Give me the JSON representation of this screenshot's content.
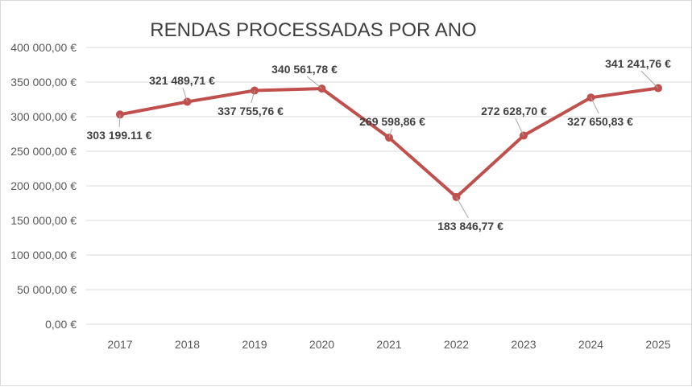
{
  "chart_data": {
    "type": "line",
    "title": "RENDAS PROCESSADAS POR ANO",
    "xlabel": "",
    "ylabel": "",
    "categories": [
      "2017",
      "2018",
      "2019",
      "2020",
      "2021",
      "2022",
      "2023",
      "2024",
      "2025"
    ],
    "values": [
      303199.11,
      321489.71,
      337755.76,
      340561.78,
      269598.86,
      183846.77,
      272628.7,
      327650.83,
      341241.76
    ],
    "data_labels": [
      "303 199.11 €",
      "321 489,71 €",
      "337 755,76 €",
      "340 561,78 €",
      "269 598,86 €",
      "183 846,77 €",
      "272 628,70 €",
      "327 650,83 €",
      "341 241,76 €"
    ],
    "yticks": [
      0,
      50000,
      100000,
      150000,
      200000,
      250000,
      300000,
      350000,
      400000
    ],
    "ytick_labels": [
      "0,00 €",
      "50 000,00 €",
      "100 000,00 €",
      "150 000,00 €",
      "200 000,00 €",
      "250 000,00 €",
      "300 000,00 €",
      "350 000,00 €",
      "400 000,00 €"
    ],
    "ylim": [
      0,
      400000
    ],
    "grid": true,
    "legend": "none",
    "series_color": "#c0504d",
    "gridline_color": "#d9d9d9"
  }
}
